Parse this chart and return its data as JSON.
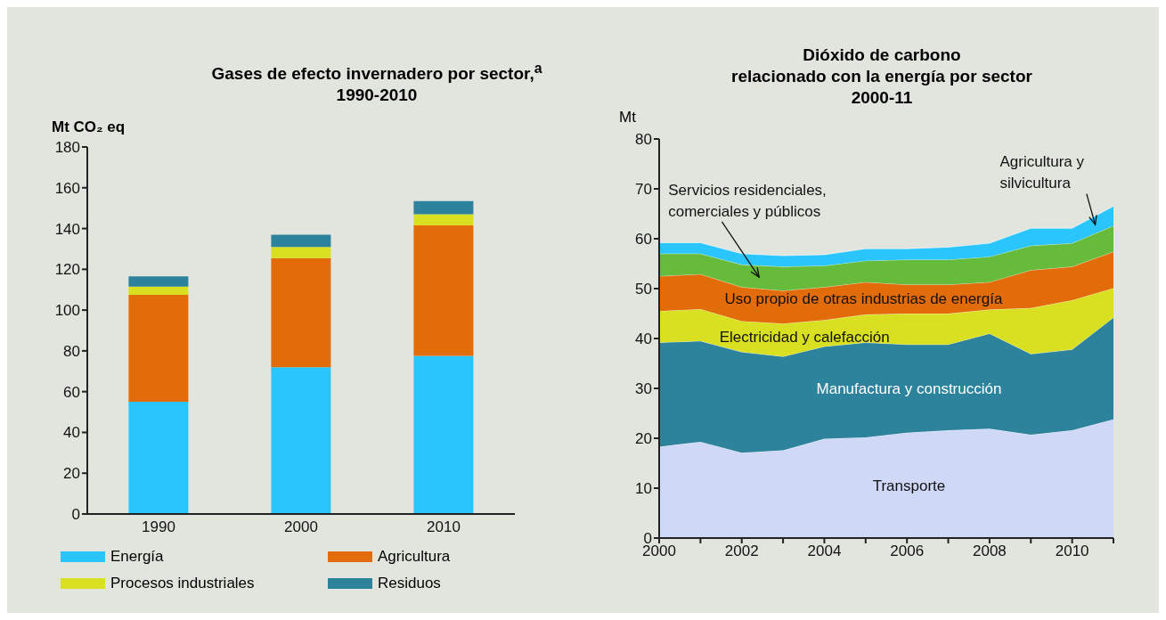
{
  "chart_data": [
    {
      "type": "bar",
      "title": "Gases de efecto invernadero por sector,$^{a}$\n1990-2010",
      "ylabel": "Mt CO₂ eq",
      "categories": [
        "1990",
        "2000",
        "2010"
      ],
      "stacked": true,
      "series": [
        {
          "name": "Energía",
          "color": "#29c5fc",
          "values": [
            55,
            72,
            77.5
          ]
        },
        {
          "name": "Agricultura",
          "color": "#e26b0a",
          "values": [
            52.5,
            53.5,
            64
          ]
        },
        {
          "name": "Procesos industriales",
          "color": "#d9e021",
          "values": [
            4,
            5.5,
            5.5
          ]
        },
        {
          "name": "Residuos",
          "color": "#2e839c",
          "values": [
            5,
            6,
            6.5
          ]
        }
      ],
      "ylim": [
        0,
        180
      ],
      "yticks": [
        0,
        20,
        40,
        60,
        80,
        100,
        120,
        140,
        160,
        180
      ],
      "grid": false,
      "legend": "bottom"
    },
    {
      "type": "area",
      "title": "Dióxido de carbono\nrelacionado con la energía por sector\n2000-11",
      "ylabel": "Mt",
      "x": [
        2000,
        2001,
        2002,
        2003,
        2004,
        2005,
        2006,
        2007,
        2008,
        2009,
        2010,
        2011
      ],
      "stacked": true,
      "series": [
        {
          "name": "Transporte",
          "color": "#d0d8f8",
          "values": [
            18.3,
            19.3,
            17.1,
            17.6,
            19.9,
            20.2,
            21.1,
            21.6,
            21.9,
            20.7,
            21.6,
            23.8
          ]
        },
        {
          "name": "Manufactura y construcción",
          "color": "#2e839c",
          "values": [
            20.9,
            20.2,
            20.2,
            18.8,
            18.5,
            19.0,
            17.7,
            17.2,
            19.1,
            16.2,
            16.2,
            20.4
          ]
        },
        {
          "name": "Electricidad y calefacción",
          "color": "#d9e021",
          "values": [
            6.3,
            6.4,
            6.2,
            6.6,
            5.3,
            5.6,
            6.2,
            6.2,
            4.8,
            9.2,
            9.9,
            5.9
          ]
        },
        {
          "name": "Uso propio de otras industrias de energía",
          "color": "#e26b0a",
          "values": [
            7.0,
            7.0,
            6.8,
            6.6,
            6.6,
            6.5,
            5.8,
            5.8,
            5.5,
            7.6,
            6.7,
            7.3
          ]
        },
        {
          "name": "Servicios residenciales, comerciales y públicos",
          "color": "#66bb3a",
          "values": [
            4.5,
            4.1,
            4.5,
            4.8,
            4.3,
            4.3,
            5.0,
            5.0,
            5.1,
            4.9,
            4.7,
            5.2
          ]
        },
        {
          "name": "Agricultura y silvicultura",
          "color": "#29c5fc",
          "values": [
            2.2,
            2.2,
            2.2,
            2.2,
            2.2,
            2.4,
            2.2,
            2.5,
            2.7,
            3.5,
            3.0,
            3.9
          ]
        }
      ],
      "xlim": [
        2000,
        2011
      ],
      "xticks": [
        2000,
        {
          "value": 2001,
          "label": null
        },
        2002,
        {
          "value": 2003,
          "label": null
        },
        2004,
        {
          "value": 2005,
          "label": null
        },
        2006,
        {
          "value": 2007,
          "label": null
        },
        2008,
        {
          "value": 2009,
          "label": null
        },
        2010,
        {
          "value": 2011,
          "label": null
        }
      ],
      "ylim": [
        0,
        80
      ],
      "yticks": [
        0,
        10,
        20,
        30,
        40,
        50,
        60,
        70,
        80
      ],
      "grid": false,
      "legend": false
    }
  ]
}
